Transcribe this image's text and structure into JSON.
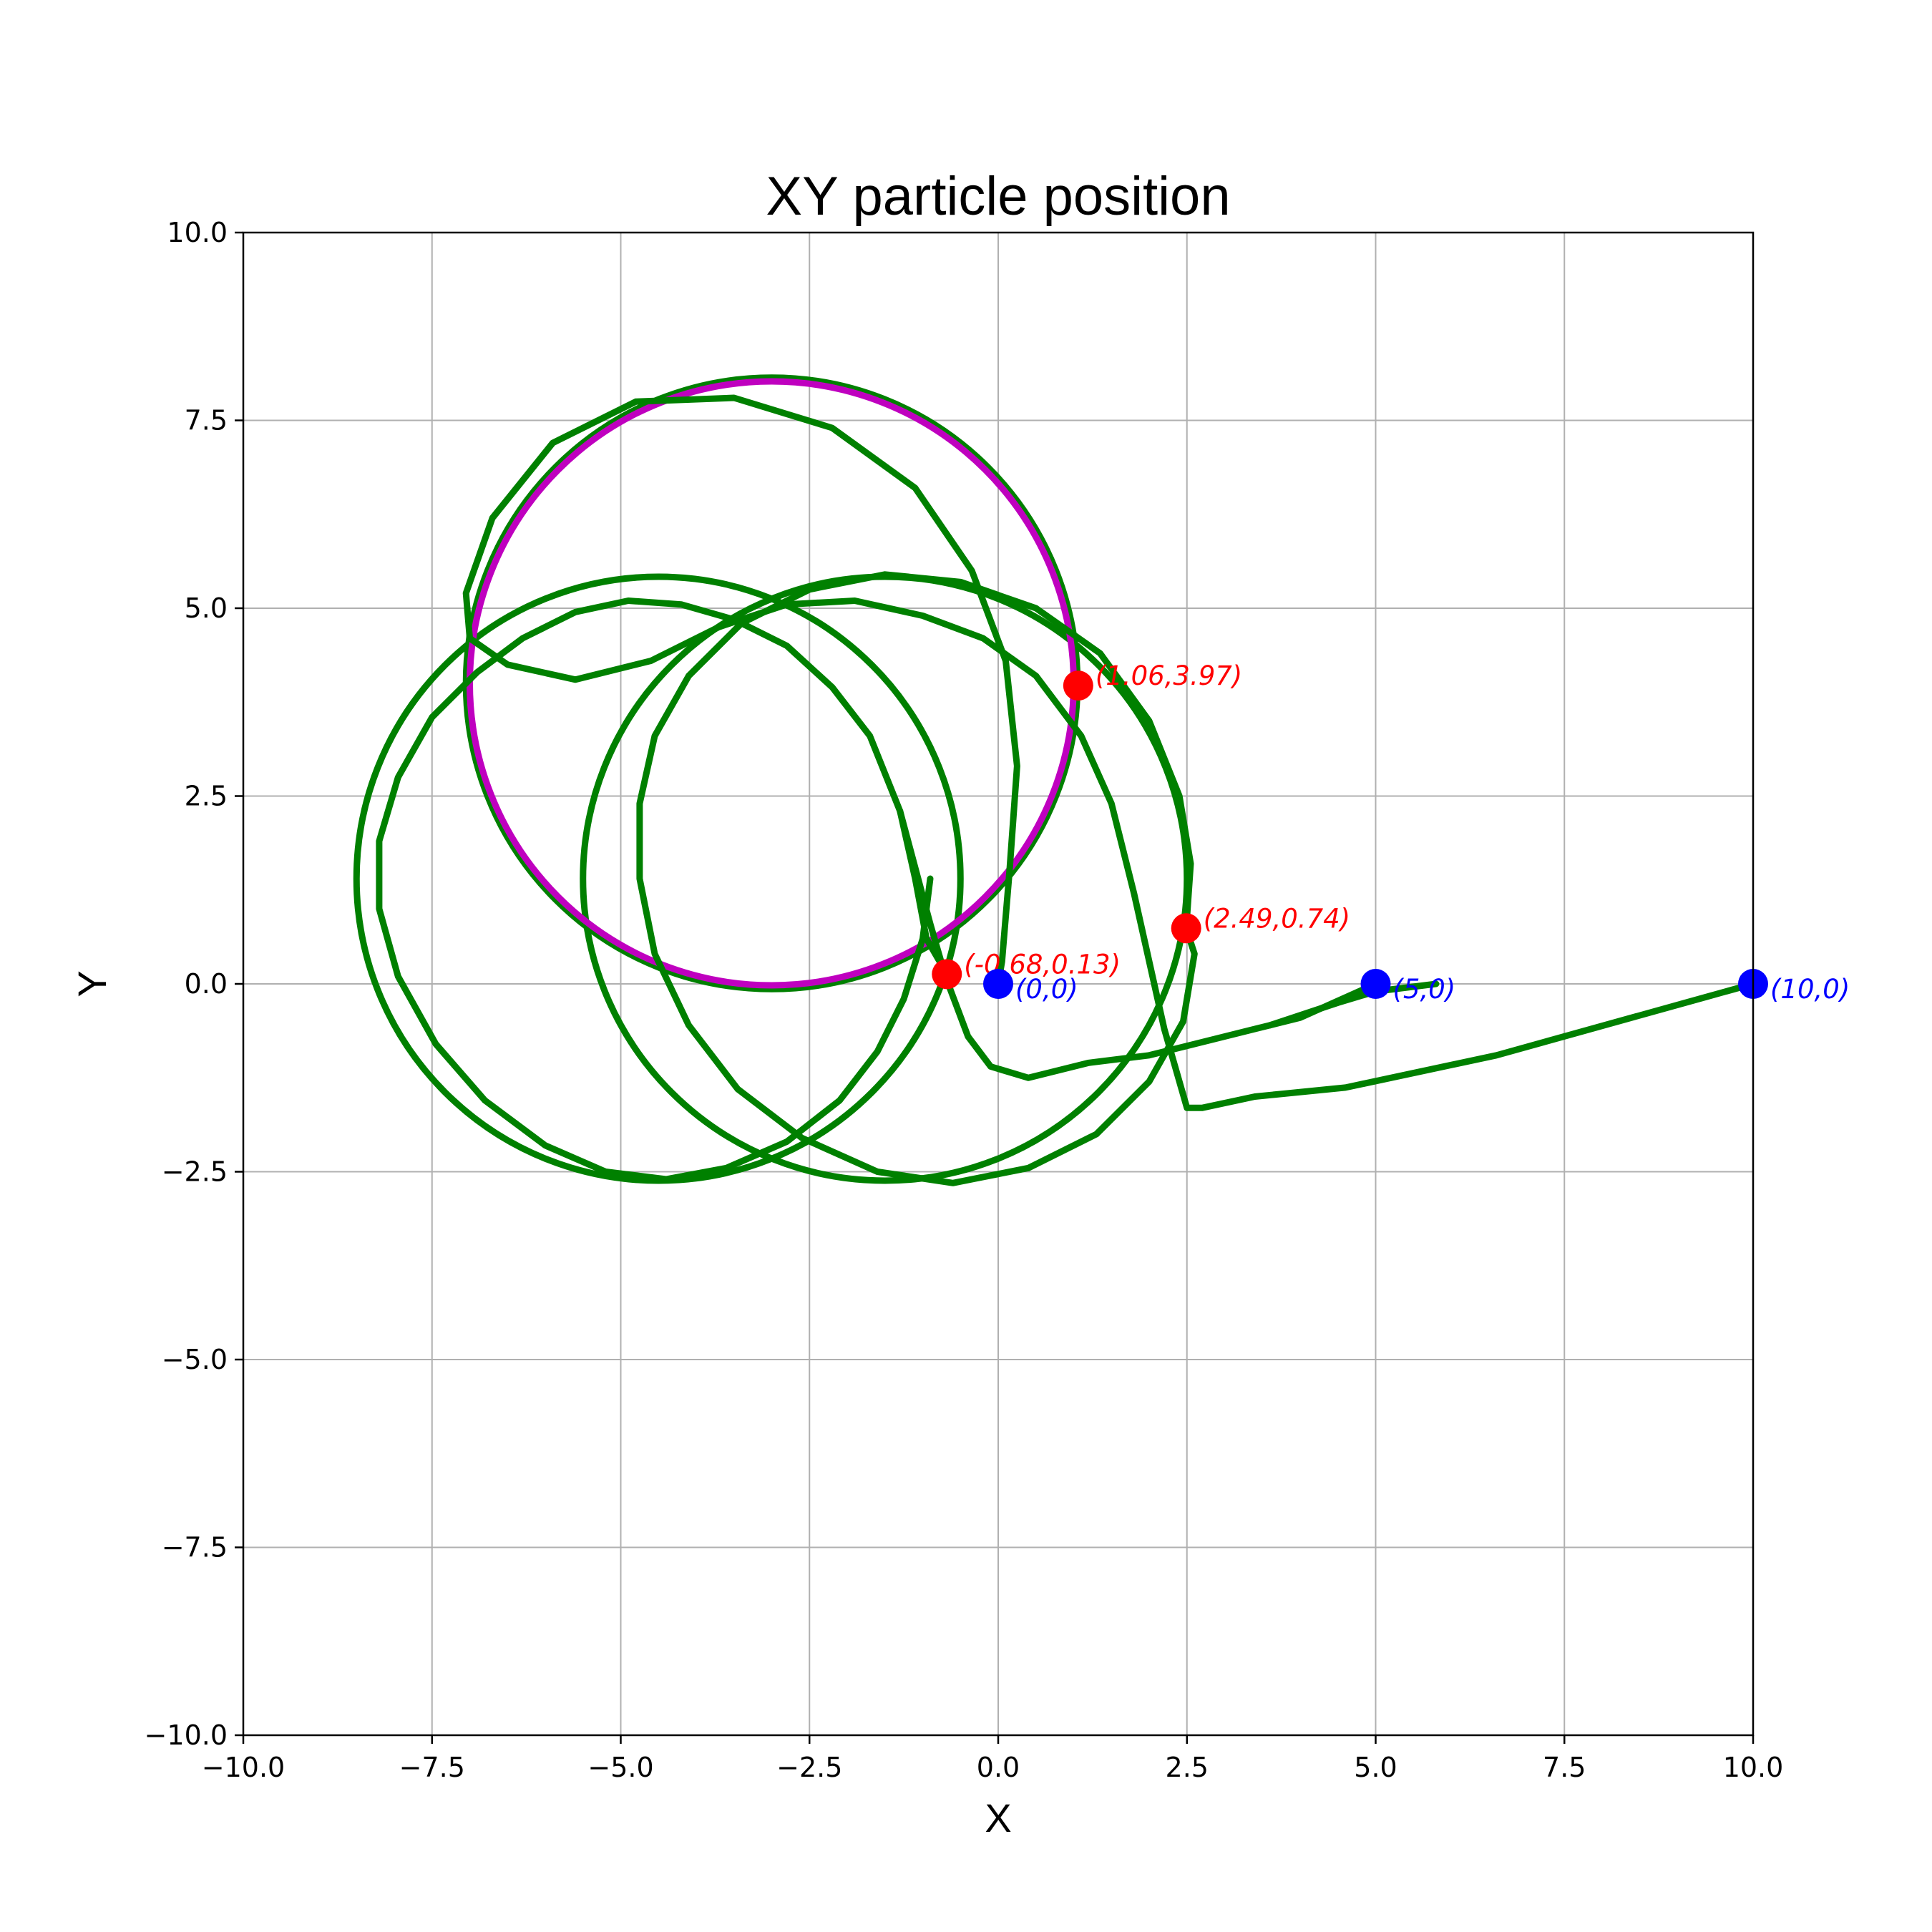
{
  "chart_data": {
    "type": "line",
    "title": "XY particle position",
    "xlabel": "X",
    "ylabel": "Y",
    "xlim": [
      -10,
      10
    ],
    "ylim": [
      -10,
      10
    ],
    "grid": true,
    "xticks": [
      "−10.0",
      "−7.5",
      "−5.0",
      "−2.5",
      "0.0",
      "2.5",
      "5.0",
      "7.5",
      "10.0"
    ],
    "yticks": [
      "−10.0",
      "−7.5",
      "−5.0",
      "−2.5",
      "0.0",
      "2.5",
      "5.0",
      "7.5",
      "10.0"
    ],
    "xtick_values": [
      -10,
      -7.5,
      -5,
      -2.5,
      0,
      2.5,
      5,
      7.5,
      10
    ],
    "ytick_values": [
      -10,
      -7.5,
      -5,
      -2.5,
      0,
      2.5,
      5,
      7.5,
      10
    ],
    "trajectories": [
      {
        "color": "#008000",
        "points": [
          [
            10,
            0
          ],
          [
            6.6,
            -0.95
          ],
          [
            4.6,
            -1.38
          ],
          [
            3.4,
            -1.5
          ],
          [
            2.7,
            -1.65
          ],
          [
            2.5,
            -1.65
          ],
          [
            2.2,
            -0.6
          ],
          [
            1.8,
            1.2
          ],
          [
            1.5,
            2.4
          ],
          [
            1.1,
            3.3
          ],
          [
            0.5,
            4.1
          ],
          [
            -0.2,
            4.6
          ],
          [
            -1.0,
            4.9
          ],
          [
            -1.9,
            5.1
          ],
          [
            -2.8,
            5.05
          ],
          [
            -3.7,
            4.75
          ],
          [
            -4.6,
            4.3
          ],
          [
            -5.6,
            4.05
          ],
          [
            -6.5,
            4.25
          ],
          [
            -7.0,
            4.6
          ],
          [
            -7.05,
            5.2
          ],
          [
            -6.7,
            6.2
          ],
          [
            -5.9,
            7.2
          ],
          [
            -4.8,
            7.75
          ],
          [
            -3.5,
            7.8
          ],
          [
            -2.2,
            7.4
          ],
          [
            -1.1,
            6.6
          ],
          [
            -0.35,
            5.5
          ],
          [
            0.1,
            4.3
          ],
          [
            0.25,
            2.9
          ],
          [
            0.15,
            1.5
          ],
          [
            0.05,
            0.3
          ],
          [
            0.0,
            0
          ]
        ]
      },
      {
        "color": "#008000",
        "points": [
          [
            5.0,
            0
          ],
          [
            4.0,
            -0.45
          ],
          [
            3.4,
            -0.6
          ],
          [
            2.0,
            -0.95
          ],
          [
            1.2,
            -1.05
          ],
          [
            0.4,
            -1.25
          ],
          [
            -0.1,
            -1.1
          ],
          [
            -0.4,
            -0.7
          ],
          [
            -0.7,
            0.1
          ],
          [
            -0.9,
            0.8
          ],
          [
            -1.3,
            2.3
          ],
          [
            -1.7,
            3.3
          ],
          [
            -2.2,
            3.95
          ],
          [
            -2.8,
            4.5
          ],
          [
            -3.5,
            4.85
          ],
          [
            -4.2,
            5.05
          ],
          [
            -4.9,
            5.1
          ],
          [
            -5.6,
            4.95
          ],
          [
            -6.3,
            4.6
          ],
          [
            -6.9,
            4.15
          ],
          [
            -7.5,
            3.55
          ],
          [
            -7.95,
            2.75
          ],
          [
            -8.2,
            1.9
          ],
          [
            -8.2,
            1.0
          ],
          [
            -7.95,
            0.1
          ],
          [
            -7.45,
            -0.8
          ],
          [
            -6.8,
            -1.55
          ],
          [
            -6.0,
            -2.15
          ],
          [
            -5.2,
            -2.5
          ],
          [
            -4.4,
            -2.6
          ],
          [
            -3.6,
            -2.45
          ],
          [
            -2.8,
            -2.1
          ],
          [
            -2.1,
            -1.55
          ],
          [
            -1.6,
            -0.9
          ],
          [
            -1.25,
            -0.2
          ],
          [
            -1.0,
            0.6
          ],
          [
            -0.9,
            1.4
          ]
        ]
      },
      {
        "color": "#008000",
        "points": [
          [
            -0.68,
            0.13
          ],
          [
            -0.95,
            0.6
          ],
          [
            -1.1,
            1.4
          ],
          [
            -1.3,
            2.3
          ]
        ]
      },
      {
        "color": "#008000",
        "points": [
          [
            2.49,
            0.74
          ],
          [
            2.55,
            1.6
          ],
          [
            2.4,
            2.5
          ],
          [
            2.0,
            3.5
          ],
          [
            1.35,
            4.4
          ],
          [
            0.5,
            5.0
          ],
          [
            -0.5,
            5.35
          ],
          [
            -1.5,
            5.45
          ],
          [
            -2.5,
            5.25
          ],
          [
            -3.4,
            4.8
          ],
          [
            -4.1,
            4.1
          ],
          [
            -4.55,
            3.3
          ],
          [
            -4.75,
            2.4
          ],
          [
            -4.75,
            1.4
          ],
          [
            -4.55,
            0.4
          ],
          [
            -4.1,
            -0.55
          ],
          [
            -3.45,
            -1.4
          ],
          [
            -2.6,
            -2.05
          ],
          [
            -1.6,
            -2.5
          ],
          [
            -0.6,
            -2.65
          ],
          [
            0.4,
            -2.45
          ],
          [
            1.3,
            -2.0
          ],
          [
            2.0,
            -1.3
          ],
          [
            2.45,
            -0.5
          ],
          [
            2.6,
            0.4
          ],
          [
            2.49,
            0.74
          ]
        ]
      },
      {
        "color": "#008000",
        "points": [
          [
            5.8,
            0
          ],
          [
            5.0,
            -0.1
          ],
          [
            4.5,
            -0.25
          ],
          [
            3.6,
            -0.55
          ]
        ]
      }
    ],
    "circles": [
      {
        "center": [
          -1.5,
          1.4
        ],
        "radius": 4.0,
        "color": "#008000"
      },
      {
        "center": [
          -4.5,
          1.4
        ],
        "radius": 4.0,
        "color": "#008000"
      },
      {
        "center": [
          -3.0,
          4.0
        ],
        "radius": 4.05,
        "color": "#008000"
      },
      {
        "center": [
          -3.0,
          4.0
        ],
        "radius": 4.0,
        "color": "#bf00bf"
      }
    ],
    "markers": [
      {
        "x": 1.06,
        "y": 3.97,
        "color": "#ff0000",
        "label": "(1.06,3.97)"
      },
      {
        "x": 2.49,
        "y": 0.74,
        "color": "#ff0000",
        "label": "(2.49,0.74)"
      },
      {
        "x": -0.68,
        "y": 0.13,
        "color": "#ff0000",
        "label": "(-0.68,0.13)"
      },
      {
        "x": 0,
        "y": 0,
        "color": "#0000ff",
        "label": "(0,0)"
      },
      {
        "x": 5,
        "y": 0,
        "color": "#0000ff",
        "label": "(5,0)"
      },
      {
        "x": 10,
        "y": 0,
        "color": "#0000ff",
        "label": "(10,0)"
      }
    ]
  }
}
